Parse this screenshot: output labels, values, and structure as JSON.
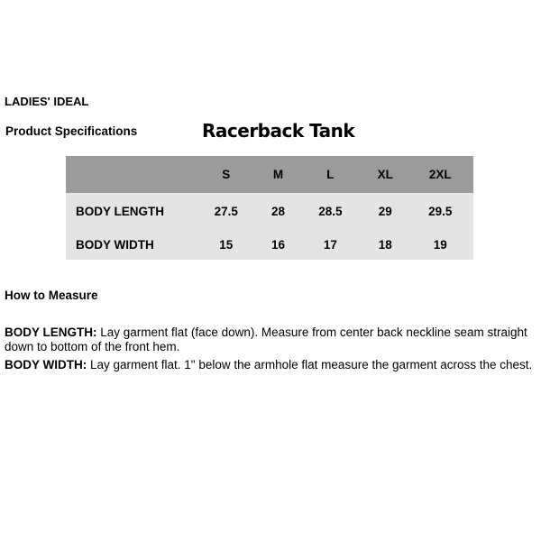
{
  "brand": "LADIES' IDEAL",
  "section_label": "Product Specifications",
  "title": "Racerback Tank",
  "table": {
    "columns": [
      "",
      "S",
      "M",
      "L",
      "XL",
      "2XL"
    ],
    "rows": [
      {
        "label": "BODY LENGTH",
        "values": [
          "27.5",
          "28",
          "28.5",
          "29",
          "29.5"
        ]
      },
      {
        "label": "BODY WIDTH",
        "values": [
          "15",
          "16",
          "17",
          "18",
          "19"
        ]
      }
    ]
  },
  "how_to_measure": {
    "heading": "How to Measure",
    "items": [
      {
        "term": "BODY LENGTH:",
        "text": " Lay garment flat (face down). Measure from center back neckline seam straight down to bottom of the front hem."
      },
      {
        "term": "BODY WIDTH:",
        "text": " Lay garment flat. 1\" below the armhole flat measure the garment across the chest."
      }
    ]
  },
  "colors": {
    "header_bg": "#9c9a9c",
    "body_bg": "#e4e4e4"
  }
}
